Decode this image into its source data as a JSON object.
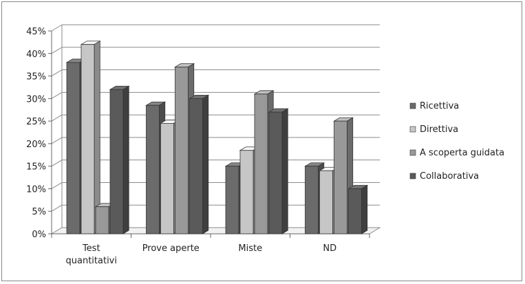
{
  "chart_data": {
    "type": "bar",
    "style": "3d-clustered-column",
    "categories": [
      "Test quantitativi",
      "Prove aperte",
      "Miste",
      "ND"
    ],
    "category_lines": [
      [
        "Test",
        "quantitativi"
      ],
      [
        "Prove aperte"
      ],
      [
        "Miste"
      ],
      [
        "ND"
      ]
    ],
    "series": [
      {
        "name": "Ricettiva",
        "color": "#6b6b6b",
        "values": [
          38,
          28.5,
          15,
          15
        ]
      },
      {
        "name": "Direttiva",
        "color": "#c6c6c6",
        "values": [
          42,
          24.5,
          18.5,
          14
        ]
      },
      {
        "name": "A scoperta guidata",
        "color": "#999999",
        "values": [
          6,
          37,
          31,
          25
        ]
      },
      {
        "name": "Collaborativa",
        "color": "#5a5a5a",
        "values": [
          32,
          30,
          27,
          10
        ]
      }
    ],
    "yticks": [
      "0%",
      "5%",
      "10%",
      "15%",
      "20%",
      "25%",
      "30%",
      "35%",
      "40%",
      "45%"
    ],
    "ylim": [
      0,
      45
    ],
    "grid": true,
    "legend_position": "right",
    "title": "",
    "xlabel": "",
    "ylabel": ""
  }
}
